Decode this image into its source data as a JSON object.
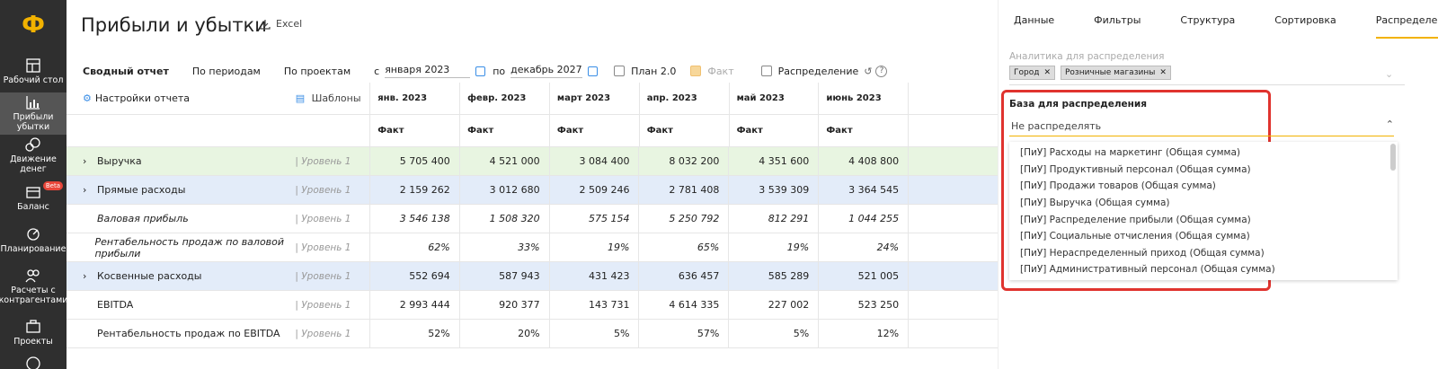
{
  "sidebar": {
    "logo": "Ф",
    "items": [
      {
        "label": "Рабочий стол",
        "icon": "dashboard-icon"
      },
      {
        "label": "Прибыли убытки",
        "icon": "chart-icon",
        "active": true
      },
      {
        "label": "Движение денег",
        "icon": "money-flow-icon"
      },
      {
        "label": "Баланс",
        "icon": "balance-icon",
        "badge": "Beta"
      },
      {
        "label": "Планирование",
        "icon": "planning-icon"
      },
      {
        "label": "Расчеты с контрагентами",
        "icon": "contractors-icon"
      },
      {
        "label": "Проекты",
        "icon": "projects-icon"
      }
    ]
  },
  "header": {
    "title": "Прибыли и убытки",
    "excel": "Excel"
  },
  "toolbar": {
    "tabs": [
      "Сводный отчет",
      "По периодам",
      "По проектам"
    ],
    "from_label": "с",
    "from_date": "января 2023",
    "to_label": "по",
    "to_date": "декабрь 2027",
    "plan": "План 2.0",
    "fact": "Факт",
    "distribution": "Распределение"
  },
  "table": {
    "settings_label": "Настройки отчета",
    "templates_label": "Шаблоны",
    "months": [
      "янв. 2023",
      "февр. 2023",
      "март 2023",
      "апр. 2023",
      "май 2023",
      "июнь 2023"
    ],
    "sub": "Факт",
    "rows": [
      {
        "name": "Выручка",
        "level": "| Уровень 1",
        "values": [
          "5 705 400",
          "4 521 000",
          "3 084 400",
          "8 032 200",
          "4 351 600",
          "4 408 800"
        ]
      },
      {
        "name": "Прямые расходы",
        "level": "| Уровень 1",
        "values": [
          "2 159 262",
          "3 012 680",
          "2 509 246",
          "2 781 408",
          "3 539 309",
          "3 364 545"
        ]
      },
      {
        "name": "Валовая прибыль",
        "level": "| Уровень 1",
        "values": [
          "3 546 138",
          "1 508 320",
          "575 154",
          "5 250 792",
          "812 291",
          "1 044 255"
        ]
      },
      {
        "name": "Рентабельность продаж по валовой прибыли",
        "level": "| Уровень 1",
        "values": [
          "62%",
          "33%",
          "19%",
          "65%",
          "19%",
          "24%"
        ]
      },
      {
        "name": "Косвенные расходы",
        "level": "| Уровень 1",
        "values": [
          "552 694",
          "587 943",
          "431 423",
          "636 457",
          "585 289",
          "521 005"
        ]
      },
      {
        "name": "EBITDA",
        "level": "| Уровень 1",
        "values": [
          "2 993 444",
          "920 377",
          "143 731",
          "4 614 335",
          "227 002",
          "523 250"
        ]
      },
      {
        "name": "Рентабельность продаж по EBITDA",
        "level": "| Уровень 1",
        "values": [
          "52%",
          "20%",
          "5%",
          "57%",
          "5%",
          "12%"
        ]
      }
    ]
  },
  "panel": {
    "tabs": [
      "Данные",
      "Фильтры",
      "Структура",
      "Сортировка",
      "Распределение"
    ],
    "analytics_label": "Аналитика для распределения",
    "chips": [
      "Город",
      "Розничные магазины"
    ],
    "base_label": "База для распределения",
    "base_value": "Не распределять",
    "options": [
      "[ПиУ] Расходы на маркетинг (Общая сумма)",
      "[ПиУ] Продуктивный персонал (Общая сумма)",
      "[ПиУ] Продажи товаров (Общая сумма)",
      "[ПиУ] Выручка (Общая сумма)",
      "[ПиУ] Распределение прибыли (Общая сумма)",
      "[ПиУ] Социальные отчисления (Общая сумма)",
      "[ПиУ] Нераспределенный приход (Общая сумма)",
      "[ПиУ] Административный персонал (Общая сумма)"
    ]
  },
  "colors": {
    "accent": "#f2b200",
    "highlight": "#e0332e",
    "revenue_row": "#e8f5e1",
    "expense_row": "#e3ecf9"
  }
}
